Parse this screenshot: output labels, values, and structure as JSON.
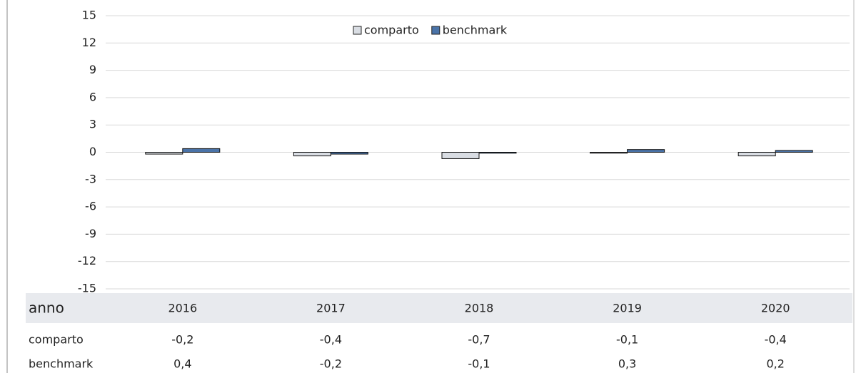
{
  "chart_data": {
    "type": "bar",
    "x_label": "anno",
    "categories": [
      "2016",
      "2017",
      "2018",
      "2019",
      "2020"
    ],
    "series": [
      {
        "name": "comparto",
        "color": "#d9dde3",
        "values": [
          -0.2,
          -0.4,
          -0.7,
          -0.1,
          -0.4
        ],
        "value_labels": [
          "-0,2",
          "-0,4",
          "-0,7",
          "-0,1",
          "-0,4"
        ]
      },
      {
        "name": "benchmark",
        "color": "#4a73a8",
        "values": [
          0.4,
          -0.2,
          -0.1,
          0.3,
          0.2
        ],
        "value_labels": [
          "0,4",
          "-0,2",
          "-0,1",
          "0,3",
          "0,2"
        ]
      }
    ],
    "ylim": [
      -15,
      15
    ],
    "yticks": [
      15,
      12,
      9,
      6,
      3,
      0,
      -3,
      -6,
      -9,
      -12,
      -15
    ],
    "grid": true,
    "legend": "top"
  }
}
